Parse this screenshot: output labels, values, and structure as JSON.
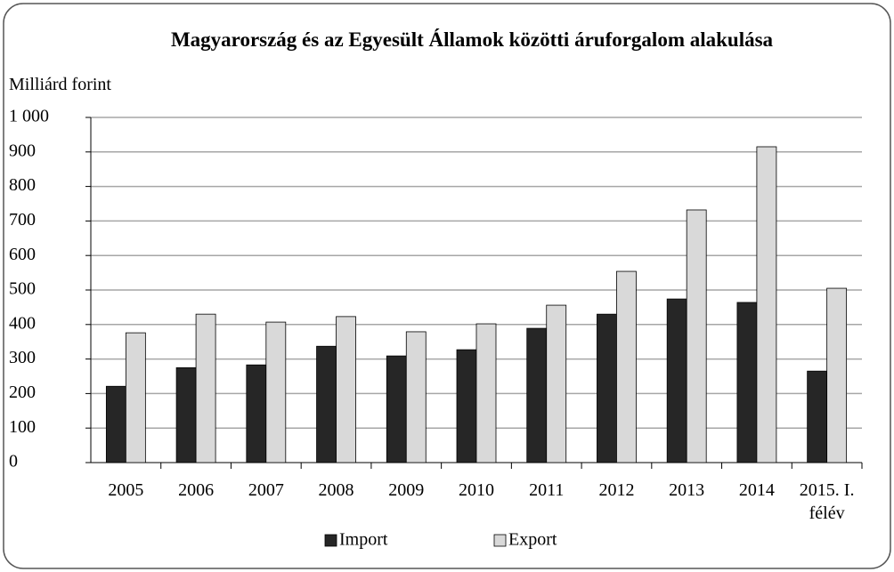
{
  "chart_data": {
    "type": "bar",
    "title": "Magyarország és az Egyesült Államok közötti áruforgalom alakulása",
    "y_label": "Milliárd forint",
    "categories": [
      "2005",
      "2006",
      "2007",
      "2008",
      "2009",
      "2010",
      "2011",
      "2012",
      "2013",
      "2014",
      "2015. I. félév"
    ],
    "series": [
      {
        "name": "Import",
        "color": "#262626",
        "values": [
          221,
          275,
          283,
          337,
          309,
          327,
          389,
          430,
          474,
          464,
          265
        ]
      },
      {
        "name": "Export",
        "color": "#d9d9d9",
        "values": [
          376,
          430,
          407,
          423,
          379,
          402,
          456,
          554,
          732,
          915,
          505
        ]
      }
    ],
    "ylim": [
      0,
      1000
    ],
    "yticks": [
      0,
      100,
      200,
      300,
      400,
      500,
      600,
      700,
      800,
      900,
      {
        "value": 1000,
        "label": "1 000"
      }
    ],
    "grid": true,
    "legend": "bottom"
  }
}
